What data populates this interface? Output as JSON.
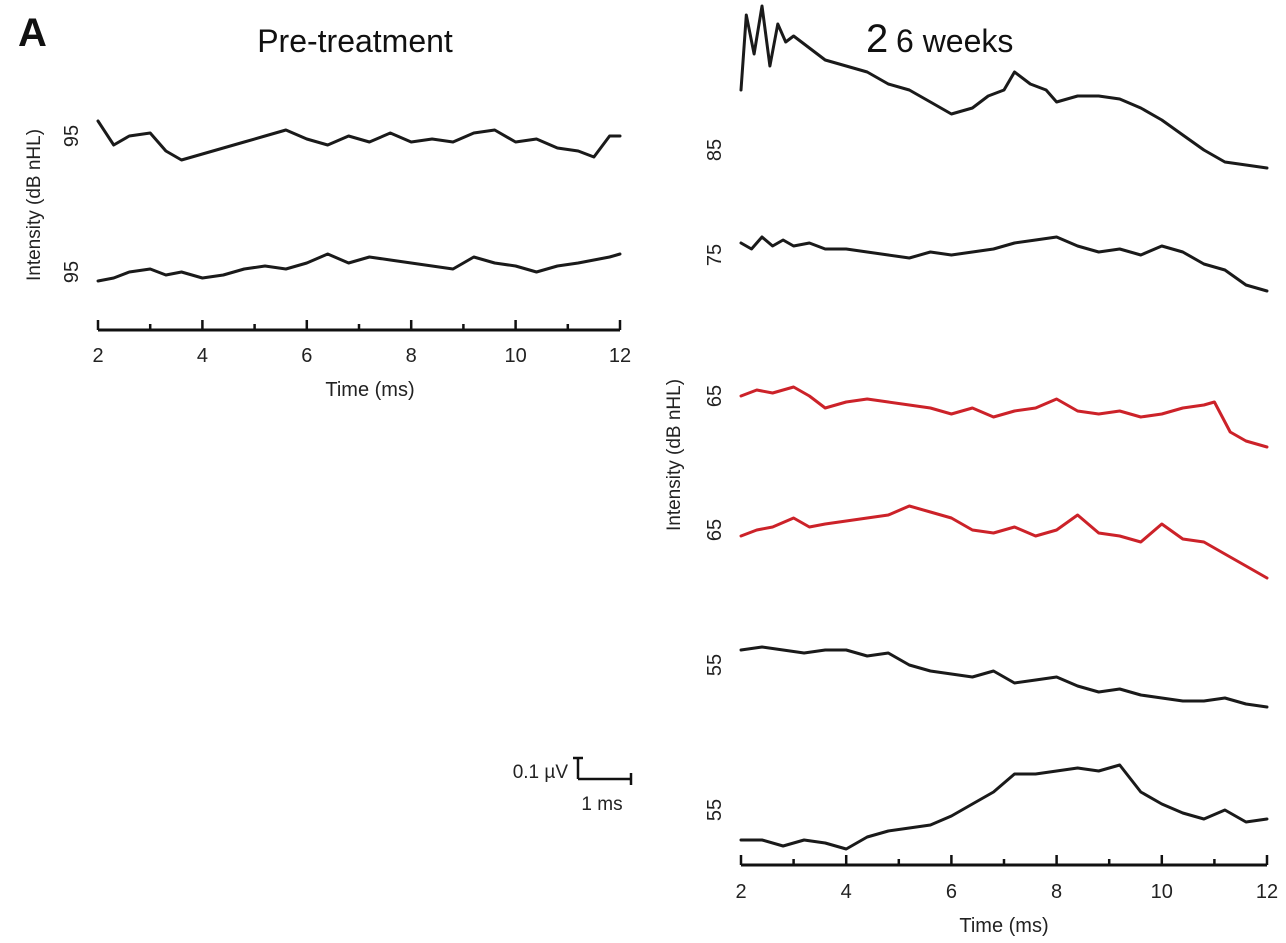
{
  "panel_label": "A",
  "scale_bar": {
    "voltage_label": "0.1 µV",
    "time_label": "1 ms"
  },
  "colors": {
    "trace_default": "#1a1a1a",
    "trace_highlight": "#cc2229",
    "axis": "#111111"
  },
  "chart_data": [
    {
      "type": "line",
      "title": "Pre-treatment",
      "xlabel": "Time (ms)",
      "ylabel": "Intensity (dB nHL)",
      "xlim": [
        2,
        12
      ],
      "xticks": [
        2,
        4,
        6,
        8,
        10,
        12
      ],
      "grid": false,
      "series": [
        {
          "name": "95",
          "color": "#1a1a1a",
          "x": [
            2.0,
            2.3,
            2.6,
            3.0,
            3.3,
            3.6,
            4.0,
            4.4,
            4.8,
            5.2,
            5.6,
            6.0,
            6.4,
            6.8,
            7.2,
            7.6,
            8.0,
            8.4,
            8.8,
            9.2,
            9.6,
            10.0,
            10.4,
            10.8,
            11.2,
            11.5,
            11.8,
            12.0
          ],
          "y": [
            0.05,
            -0.03,
            0.0,
            0.01,
            -0.05,
            -0.08,
            -0.06,
            -0.04,
            -0.02,
            0.0,
            0.02,
            -0.01,
            -0.03,
            0.0,
            -0.02,
            0.01,
            -0.02,
            -0.01,
            -0.02,
            0.01,
            0.02,
            -0.02,
            -0.01,
            -0.04,
            -0.05,
            -0.07,
            0.0,
            0.0
          ]
        },
        {
          "name": "95",
          "color": "#1a1a1a",
          "x": [
            2.0,
            2.3,
            2.6,
            3.0,
            3.3,
            3.6,
            4.0,
            4.4,
            4.8,
            5.2,
            5.6,
            6.0,
            6.4,
            6.8,
            7.2,
            7.6,
            8.0,
            8.4,
            8.8,
            9.2,
            9.6,
            10.0,
            10.4,
            10.8,
            11.2,
            11.5,
            11.8,
            12.0
          ],
          "y": [
            -0.03,
            -0.02,
            0.0,
            0.01,
            -0.01,
            0.0,
            -0.02,
            -0.01,
            0.01,
            0.02,
            0.01,
            0.03,
            0.06,
            0.03,
            0.05,
            0.04,
            0.03,
            0.02,
            0.01,
            0.05,
            0.03,
            0.02,
            0.0,
            0.02,
            0.03,
            0.04,
            0.05,
            0.06
          ]
        }
      ]
    },
    {
      "type": "line",
      "title_prefix": "2",
      "title": "6 weeks",
      "xlabel": "Time (ms)",
      "ylabel": "Intensity (dB nHL)",
      "xlim": [
        2,
        12
      ],
      "xticks": [
        2,
        4,
        6,
        8,
        10,
        12
      ],
      "grid": false,
      "series": [
        {
          "name": "85",
          "color": "#1a1a1a",
          "x": [
            2.0,
            2.1,
            2.25,
            2.4,
            2.55,
            2.7,
            2.85,
            3.0,
            3.3,
            3.6,
            4.0,
            4.4,
            4.8,
            5.2,
            5.6,
            6.0,
            6.4,
            6.7,
            7.0,
            7.2,
            7.5,
            7.8,
            8.0,
            8.4,
            8.8,
            9.2,
            9.6,
            10.0,
            10.4,
            10.8,
            11.2,
            11.6,
            12.0
          ],
          "y": [
            0.2,
            0.45,
            0.32,
            0.48,
            0.28,
            0.42,
            0.36,
            0.38,
            0.34,
            0.3,
            0.28,
            0.26,
            0.22,
            0.2,
            0.16,
            0.12,
            0.14,
            0.18,
            0.2,
            0.26,
            0.22,
            0.2,
            0.16,
            0.18,
            0.18,
            0.17,
            0.14,
            0.1,
            0.05,
            0.0,
            -0.04,
            -0.05,
            -0.06
          ]
        },
        {
          "name": "75",
          "color": "#1a1a1a",
          "x": [
            2.0,
            2.2,
            2.4,
            2.6,
            2.8,
            3.0,
            3.3,
            3.6,
            4.0,
            4.4,
            4.8,
            5.2,
            5.6,
            6.0,
            6.4,
            6.8,
            7.2,
            7.6,
            8.0,
            8.4,
            8.8,
            9.2,
            9.6,
            10.0,
            10.4,
            10.8,
            11.2,
            11.6,
            12.0
          ],
          "y": [
            0.04,
            0.02,
            0.06,
            0.03,
            0.05,
            0.03,
            0.04,
            0.02,
            0.02,
            0.01,
            0.0,
            -0.01,
            0.01,
            0.0,
            0.01,
            0.02,
            0.04,
            0.05,
            0.06,
            0.03,
            0.01,
            0.02,
            0.0,
            0.03,
            0.01,
            -0.03,
            -0.05,
            -0.1,
            -0.12
          ]
        },
        {
          "name": "65",
          "color": "#cc2229",
          "x": [
            2.0,
            2.3,
            2.6,
            3.0,
            3.3,
            3.6,
            4.0,
            4.4,
            4.8,
            5.2,
            5.6,
            6.0,
            6.4,
            6.8,
            7.2,
            7.6,
            8.0,
            8.4,
            8.8,
            9.2,
            9.6,
            10.0,
            10.4,
            10.8,
            11.0,
            11.3,
            11.6,
            12.0
          ],
          "y": [
            0.0,
            0.02,
            0.01,
            0.03,
            0.0,
            -0.04,
            -0.02,
            -0.01,
            -0.02,
            -0.03,
            -0.04,
            -0.06,
            -0.04,
            -0.07,
            -0.05,
            -0.04,
            -0.01,
            -0.05,
            -0.06,
            -0.05,
            -0.07,
            -0.06,
            -0.04,
            -0.03,
            -0.02,
            -0.12,
            -0.15,
            -0.17
          ]
        },
        {
          "name": "65",
          "color": "#cc2229",
          "x": [
            2.0,
            2.3,
            2.6,
            3.0,
            3.3,
            3.6,
            4.0,
            4.4,
            4.8,
            5.2,
            5.6,
            6.0,
            6.4,
            6.8,
            7.2,
            7.6,
            8.0,
            8.4,
            8.8,
            9.2,
            9.6,
            10.0,
            10.4,
            10.8,
            11.2,
            11.6,
            12.0
          ],
          "y": [
            -0.02,
            0.0,
            0.01,
            0.04,
            0.01,
            0.02,
            0.03,
            0.04,
            0.05,
            0.08,
            0.06,
            0.04,
            0.0,
            -0.01,
            0.01,
            -0.02,
            0.0,
            0.05,
            -0.01,
            -0.02,
            -0.04,
            0.02,
            -0.03,
            -0.04,
            -0.08,
            -0.12,
            -0.16
          ]
        },
        {
          "name": "55",
          "color": "#1a1a1a",
          "x": [
            2.0,
            2.4,
            2.8,
            3.2,
            3.6,
            4.0,
            4.4,
            4.8,
            5.2,
            5.6,
            6.0,
            6.4,
            6.8,
            7.2,
            7.6,
            8.0,
            8.4,
            8.8,
            9.2,
            9.6,
            10.0,
            10.4,
            10.8,
            11.2,
            11.6,
            12.0
          ],
          "y": [
            0.05,
            0.06,
            0.05,
            0.04,
            0.05,
            0.05,
            0.03,
            0.04,
            0.0,
            -0.02,
            -0.03,
            -0.04,
            -0.02,
            -0.06,
            -0.05,
            -0.04,
            -0.07,
            -0.09,
            -0.08,
            -0.1,
            -0.11,
            -0.12,
            -0.12,
            -0.11,
            -0.13,
            -0.14
          ]
        },
        {
          "name": "55",
          "color": "#1a1a1a",
          "x": [
            2.0,
            2.4,
            2.8,
            3.2,
            3.6,
            4.0,
            4.4,
            4.8,
            5.2,
            5.6,
            6.0,
            6.4,
            6.8,
            7.2,
            7.6,
            8.0,
            8.4,
            8.8,
            9.2,
            9.6,
            10.0,
            10.4,
            10.8,
            11.2,
            11.6,
            12.0
          ],
          "y": [
            -0.1,
            -0.1,
            -0.12,
            -0.1,
            -0.11,
            -0.13,
            -0.09,
            -0.07,
            -0.06,
            -0.05,
            -0.02,
            0.02,
            0.06,
            0.12,
            0.12,
            0.13,
            0.14,
            0.13,
            0.15,
            0.06,
            0.02,
            -0.01,
            -0.03,
            0.0,
            -0.04,
            -0.03
          ]
        }
      ]
    }
  ]
}
